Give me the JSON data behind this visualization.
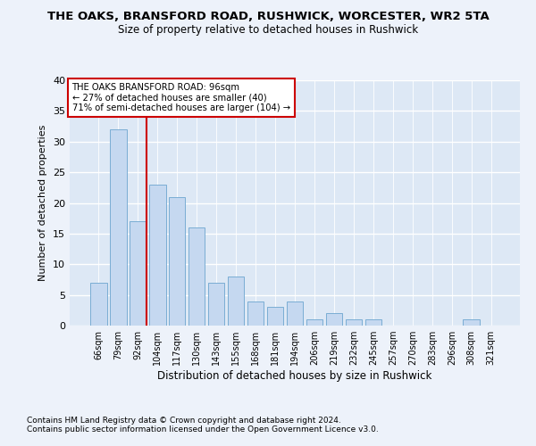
{
  "title": "THE OAKS, BRANSFORD ROAD, RUSHWICK, WORCESTER, WR2 5TA",
  "subtitle": "Size of property relative to detached houses in Rushwick",
  "xlabel": "Distribution of detached houses by size in Rushwick",
  "ylabel": "Number of detached properties",
  "categories": [
    "66sqm",
    "79sqm",
    "92sqm",
    "104sqm",
    "117sqm",
    "130sqm",
    "143sqm",
    "155sqm",
    "168sqm",
    "181sqm",
    "194sqm",
    "206sqm",
    "219sqm",
    "232sqm",
    "245sqm",
    "257sqm",
    "270sqm",
    "283sqm",
    "296sqm",
    "308sqm",
    "321sqm"
  ],
  "values": [
    7,
    32,
    17,
    23,
    21,
    16,
    7,
    8,
    4,
    3,
    4,
    1,
    2,
    1,
    1,
    0,
    0,
    0,
    0,
    1,
    0
  ],
  "bar_color": "#c5d8f0",
  "bar_edge_color": "#7aadd4",
  "highlight_line_color": "#cc0000",
  "annotation_title": "THE OAKS BRANSFORD ROAD: 96sqm",
  "annotation_line1": "← 27% of detached houses are smaller (40)",
  "annotation_line2": "71% of semi-detached houses are larger (104) →",
  "annotation_box_color": "#ffffff",
  "annotation_box_edge_color": "#cc0000",
  "ylim": [
    0,
    40
  ],
  "yticks": [
    0,
    5,
    10,
    15,
    20,
    25,
    30,
    35,
    40
  ],
  "footer1": "Contains HM Land Registry data © Crown copyright and database right 2024.",
  "footer2": "Contains public sector information licensed under the Open Government Licence v3.0.",
  "bg_color": "#edf2fa",
  "plot_bg_color": "#dde8f5"
}
